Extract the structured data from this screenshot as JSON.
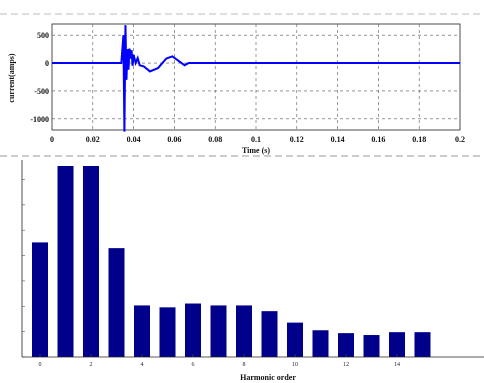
{
  "chart_data": [
    {
      "type": "line",
      "xlabel": "Time (s)",
      "ylabel": "current(amps)",
      "xlim": [
        0,
        0.2
      ],
      "ylim": [
        -1200,
        700
      ],
      "xticks": [
        "0",
        "0.02",
        "0.04",
        "0.06",
        "0.08",
        "0.1",
        "0.12",
        "0.14",
        "0.16",
        "0.18",
        "0.2"
      ],
      "yticks": [
        "500",
        "0",
        "-500",
        "-1000"
      ],
      "grid": true,
      "color": "#0000ff",
      "x": [
        0,
        0.034,
        0.035,
        0.0355,
        0.036,
        0.0365,
        0.037,
        0.0375,
        0.038,
        0.0385,
        0.039,
        0.0395,
        0.04,
        0.041,
        0.042,
        0.043,
        0.045,
        0.048,
        0.052,
        0.056,
        0.059,
        0.062,
        0.065,
        0.067,
        0.068,
        0.2
      ],
      "y": [
        0,
        0,
        500,
        -1230,
        680,
        -300,
        250,
        -120,
        260,
        80,
        230,
        -50,
        150,
        0,
        90,
        -40,
        -60,
        -150,
        -90,
        80,
        120,
        40,
        -40,
        0,
        0,
        0
      ]
    },
    {
      "type": "bar",
      "xlabel": "Harmonic order",
      "ylabel": "",
      "categories": [
        0,
        1,
        2,
        3,
        4,
        5,
        6,
        7,
        8,
        9,
        10,
        11,
        12,
        13,
        14,
        15
      ],
      "values": [
        6.0,
        10.0,
        10.0,
        5.7,
        2.7,
        2.6,
        2.8,
        2.7,
        2.7,
        2.4,
        1.8,
        1.4,
        1.25,
        1.15,
        1.3,
        1.3
      ],
      "xticks": [
        "0",
        "2",
        "4",
        "6",
        "8",
        "10",
        "12",
        "14"
      ],
      "ylim": [
        0,
        10
      ],
      "grid": false,
      "color": "#00008b"
    }
  ]
}
